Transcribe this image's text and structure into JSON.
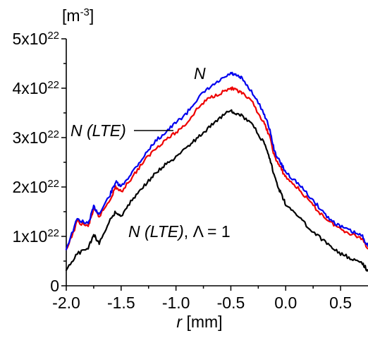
{
  "chart_data": {
    "type": "line",
    "title": "",
    "xlabel": "r",
    "xlabel_unit": "[mm]",
    "ylabel_unit_base": "[m",
    "ylabel_unit_exp": "-3",
    "ylabel_unit_close": "]",
    "xlim": [
      -2.0,
      0.75
    ],
    "ylim": [
      0,
      5e+22
    ],
    "x_ticks": [
      {
        "value": -2.0,
        "label": "-2.0"
      },
      {
        "value": -1.5,
        "label": "-1.5"
      },
      {
        "value": -1.0,
        "label": "-1.0"
      },
      {
        "value": -0.5,
        "label": "-0.5"
      },
      {
        "value": 0.0,
        "label": "0.0"
      },
      {
        "value": 0.5,
        "label": "0.5"
      }
    ],
    "y_ticks": [
      {
        "value": 0,
        "mantissa": "0",
        "exp": ""
      },
      {
        "value": 1e+22,
        "mantissa": "1x10",
        "exp": "22"
      },
      {
        "value": 2e+22,
        "mantissa": "2x10",
        "exp": "22"
      },
      {
        "value": 3e+22,
        "mantissa": "3x10",
        "exp": "22"
      },
      {
        "value": 4e+22,
        "mantissa": "4x10",
        "exp": "22"
      },
      {
        "value": 5e+22,
        "mantissa": "5x10",
        "exp": "22"
      }
    ],
    "grid": false,
    "x": [
      -2.0,
      -1.9,
      -1.8,
      -1.75,
      -1.7,
      -1.6,
      -1.55,
      -1.5,
      -1.4,
      -1.3,
      -1.2,
      -1.1,
      -1.0,
      -0.9,
      -0.8,
      -0.7,
      -0.6,
      -0.5,
      -0.45,
      -0.4,
      -0.3,
      -0.2,
      -0.15,
      -0.1,
      -0.05,
      0.0,
      0.1,
      0.2,
      0.3,
      0.4,
      0.5,
      0.6,
      0.7,
      0.75
    ],
    "series": [
      {
        "color": "#0000ee",
        "values": [
          7.5e+21,
          1.35e+22,
          1.25e+22,
          1.6e+22,
          1.45e+22,
          1.85e+22,
          2.1e+22,
          2e+22,
          2.3e+22,
          2.6e+22,
          2.9e+22,
          3.1e+22,
          3.3e+22,
          3.5e+22,
          3.8e+22,
          4e+22,
          4.15e+22,
          4.3e+22,
          4.25e+22,
          4.2e+22,
          3.9e+22,
          3.5e+22,
          3.2e+22,
          2.7e+22,
          2.5e+22,
          2.3e+22,
          2.1e+22,
          1.85e+22,
          1.6e+22,
          1.35e+22,
          1.2e+22,
          1.1e+22,
          1e+22,
          8e+21
        ]
      },
      {
        "color": "#ee0000",
        "values": [
          7e+21,
          1.3e+22,
          1.2e+22,
          1.55e+22,
          1.4e+22,
          1.75e+22,
          2e+22,
          1.9e+22,
          2.2e+22,
          2.5e+22,
          2.75e+22,
          2.95e+22,
          3.1e+22,
          3.3e+22,
          3.6e+22,
          3.8e+22,
          3.9e+22,
          4e+22,
          3.95e+22,
          3.9e+22,
          3.7e+22,
          3.3e+22,
          3.05e+22,
          2.6e+22,
          2.4e+22,
          2.2e+22,
          2e+22,
          1.75e+22,
          1.5e+22,
          1.3e+22,
          1.15e+22,
          1.05e+22,
          9.5e+21,
          7.5e+21
        ]
      },
      {
        "color": "#000000",
        "values": [
          3e+21,
          6.5e+21,
          7.5e+21,
          1.05e+22,
          8.5e+21,
          1.35e+22,
          1.5e+22,
          1.4e+22,
          1.75e+22,
          2e+22,
          2.25e+22,
          2.45e+22,
          2.6e+22,
          2.8e+22,
          3e+22,
          3.2e+22,
          3.4e+22,
          3.55e+22,
          3.5e+22,
          3.45e+22,
          3.25e+22,
          2.9e+22,
          2.6e+22,
          2.2e+22,
          1.9e+22,
          1.65e+22,
          1.45e+22,
          1.2e+22,
          1e+22,
          8e+21,
          6.5e+21,
          5.5e+21,
          4.5e+21,
          3e+21
        ]
      }
    ],
    "annotations": {
      "n_label": "N",
      "n_lte_label": "N (LTE)",
      "n_lte_lambda_italic": "N (LTE)",
      "n_lte_lambda_rest": ", Λ = 1"
    }
  }
}
